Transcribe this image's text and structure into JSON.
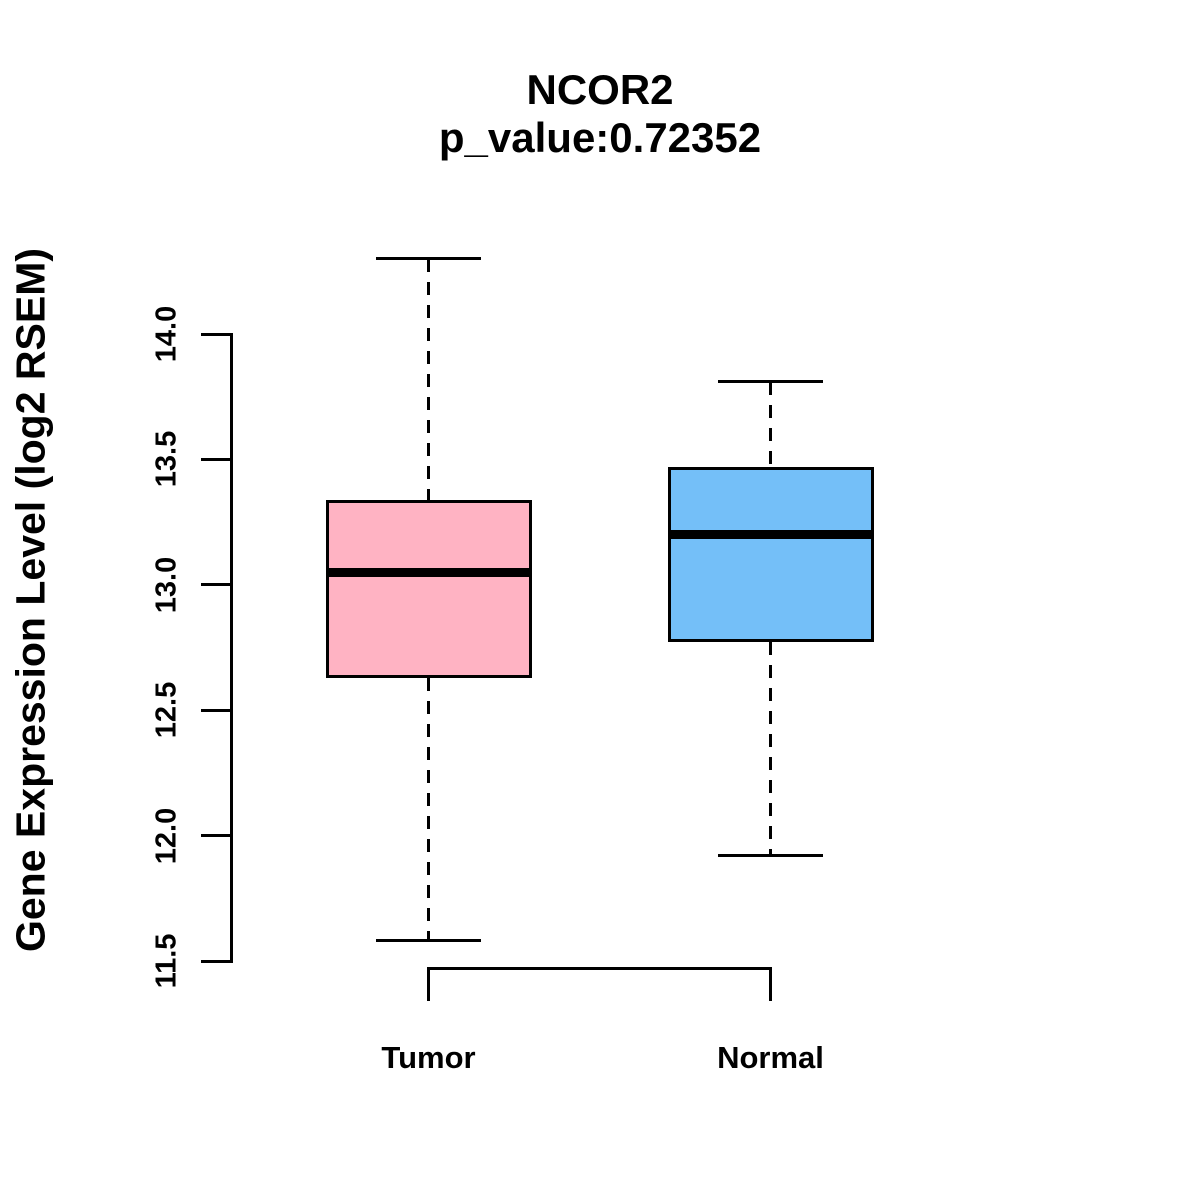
{
  "figure": {
    "title_line1": "NCOR2",
    "title_line2": "p_value:0.72352",
    "y_axis_label": "Gene Expression Level (log2 RSEM)"
  },
  "chart_data": {
    "type": "boxplot",
    "title": "NCOR2",
    "subtitle": "p_value:0.72352",
    "xlabel": "",
    "ylabel": "Gene Expression Level (log2 RSEM)",
    "ylim": [
      11.5,
      14.0
    ],
    "ytick_labels": [
      "14.0",
      "13.5",
      "13.0",
      "12.5",
      "12.0",
      "11.5"
    ],
    "ytick_values": [
      14.0,
      13.5,
      13.0,
      12.5,
      12.0,
      11.5
    ],
    "grid": false,
    "legend": "none",
    "groups": [
      {
        "label": "Tumor",
        "color": "#ffb3c3",
        "whisker_low": 11.58,
        "q1": 12.63,
        "median": 13.05,
        "q3": 13.34,
        "whisker_high": 14.3
      },
      {
        "label": "Normal",
        "color": "#74bff8",
        "whisker_low": 11.92,
        "q1": 12.77,
        "median": 13.2,
        "q3": 13.47,
        "whisker_high": 13.81
      }
    ],
    "style_colors": {
      "stroke": "#000000",
      "background": "#ffffff",
      "tumor_fill": "#ffb3c3",
      "normal_fill": "#74bff8"
    }
  }
}
